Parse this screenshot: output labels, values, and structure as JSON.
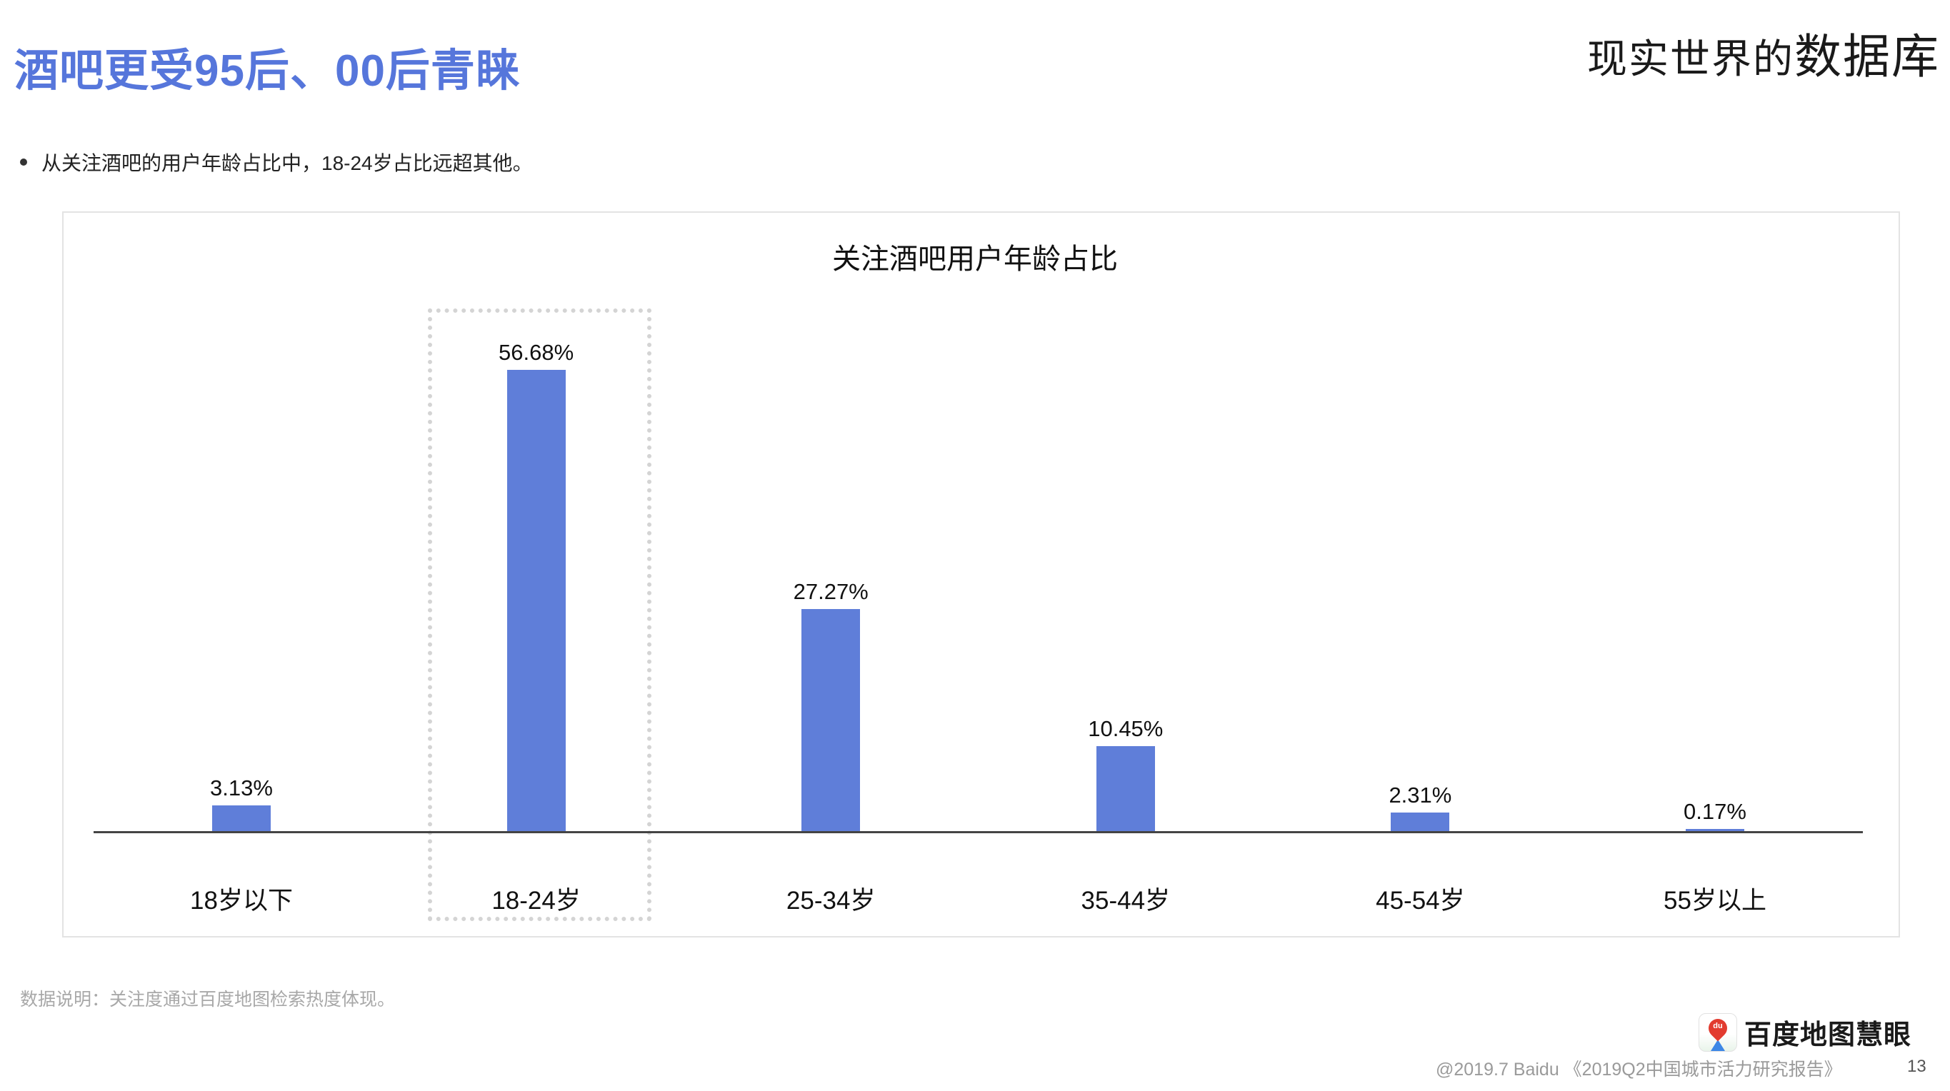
{
  "header": {
    "title": "酒吧更受95后、00后青睐",
    "slogan_part1": "现实世界的",
    "slogan_part2": "数据库"
  },
  "bullet": {
    "text": "从关注酒吧的用户年龄占比中，18-24岁占比远超其他。"
  },
  "chart": {
    "title": "关注酒吧用户年龄占比",
    "bars": [
      {
        "category": "18岁以下",
        "label": "3.13%"
      },
      {
        "category": "18-24岁",
        "label": "56.68%"
      },
      {
        "category": "25-34岁",
        "label": "27.27%"
      },
      {
        "category": "35-44岁",
        "label": "10.45%"
      },
      {
        "category": "45-54岁",
        "label": "2.31%"
      },
      {
        "category": "55岁以上",
        "label": "0.17%"
      }
    ],
    "highlight_index": 1,
    "bar_color": "#5f7ed9"
  },
  "chart_data": {
    "type": "bar",
    "title": "关注酒吧用户年龄占比",
    "categories": [
      "18岁以下",
      "18-24岁",
      "25-34岁",
      "35-44岁",
      "45-54岁",
      "55岁以上"
    ],
    "values": [
      3.13,
      56.68,
      27.27,
      10.45,
      2.31,
      0.17
    ],
    "unit": "%",
    "xlabel": "",
    "ylabel": "",
    "ylim": [
      0,
      60
    ],
    "grid": false,
    "legend": "none",
    "data_labels": true,
    "highlighted_category": "18-24岁",
    "colors": {
      "bar": "#5f7ed9",
      "title": "#5676db"
    }
  },
  "footer": {
    "data_note": "数据说明：关注度通过百度地图检索热度体现。",
    "logo_icon_text": "du",
    "logo_text": "百度地图慧眼",
    "credit": "@2019.7 Baidu 《2019Q2中国城市活力研究报告》",
    "page_number": "13"
  }
}
